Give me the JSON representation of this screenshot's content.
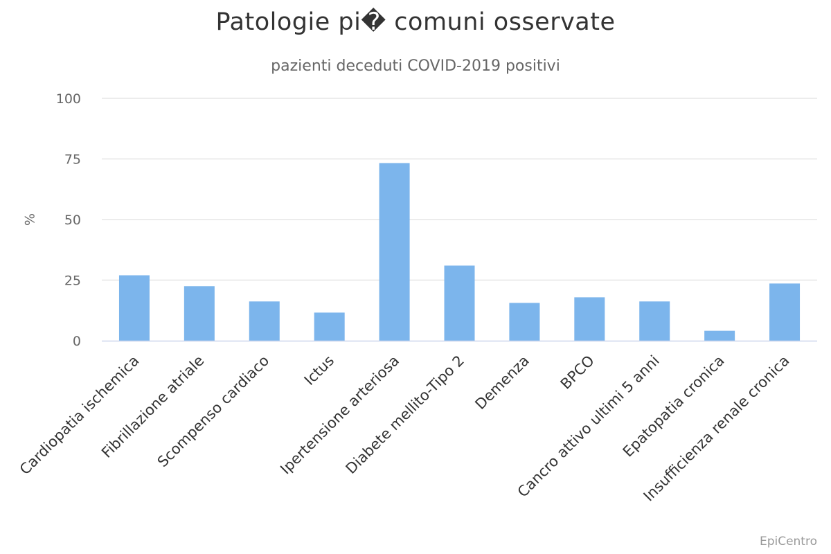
{
  "chart_data": {
    "type": "bar",
    "title": "Patologie pi� comuni osservate",
    "subtitle": "pazienti deceduti COVID-2019 positivi",
    "ylabel": "%",
    "xlabel": "",
    "ylim": [
      0,
      100
    ],
    "yticks": [
      0,
      25,
      50,
      75,
      100
    ],
    "grid": true,
    "categories": [
      "Cardiopatia ischemica",
      "Fibrillazione atriale",
      "Scompenso cardiaco",
      "Ictus",
      "Ipertensione arteriosa",
      "Diabete mellito-Tipo 2",
      "Demenza",
      "BPCO",
      "Cancro attivo ultimi 5 anni",
      "Epatopatia cronica",
      "Insufficienza renale cronica"
    ],
    "values": [
      27.0,
      22.5,
      16.2,
      11.6,
      73.3,
      31.0,
      15.6,
      17.9,
      16.2,
      4.1,
      23.6
    ],
    "bar_color": "#7cb5ec",
    "grid_color": "#e6e6e6",
    "axis_color": "#ccd6eb"
  },
  "credit": "EpiCentro"
}
